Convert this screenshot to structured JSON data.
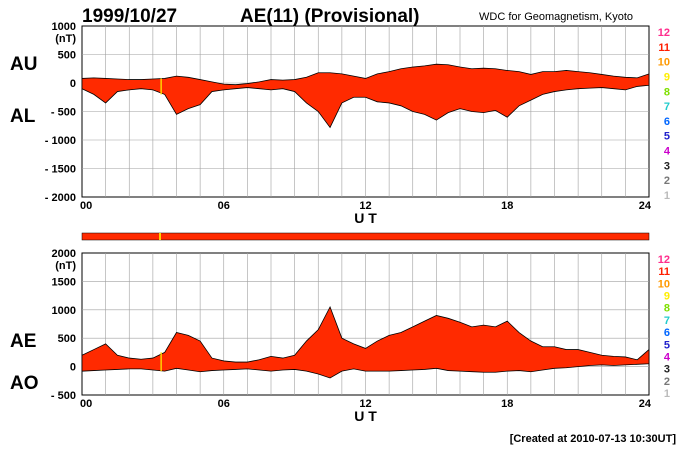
{
  "header": {
    "date": "1999/10/27",
    "title": "AE(11) (Provisional)",
    "source": "WDC for Geomagnetism, Kyoto"
  },
  "footer": {
    "created": "[Created at 2010-07-13 10:30UT]"
  },
  "colors": {
    "fill": "#ff2a00",
    "outline": "#000000",
    "grid": "#a0a0a0",
    "marker": "#ffd200"
  },
  "legend": [
    {
      "label": "12",
      "color": "#ff2c8c"
    },
    {
      "label": "11",
      "color": "#ff1e00"
    },
    {
      "label": "10",
      "color": "#ff9900"
    },
    {
      "label": "9",
      "color": "#ffee00"
    },
    {
      "label": "8",
      "color": "#7fe000"
    },
    {
      "label": "7",
      "color": "#22cccc"
    },
    {
      "label": "6",
      "color": "#0066ff"
    },
    {
      "label": "5",
      "color": "#2222cc"
    },
    {
      "label": "4",
      "color": "#cc00cc"
    },
    {
      "label": "3",
      "color": "#222222"
    },
    {
      "label": "2",
      "color": "#777777"
    },
    {
      "label": "1",
      "color": "#bbbbbb"
    }
  ],
  "chart_data": [
    {
      "type": "area",
      "name": "AU/AL",
      "series_labels": {
        "upper": "AU",
        "lower": "AL"
      },
      "xlabel": "U T",
      "xlim": [
        0,
        24
      ],
      "ylim": [
        -2000,
        1000
      ],
      "xticks": [
        "00",
        "06",
        "12",
        "18",
        "24"
      ],
      "xtick_values": [
        0,
        6,
        12,
        18,
        24
      ],
      "yticks": [
        1000,
        500,
        0,
        -500,
        -1000,
        -1500,
        -2000
      ],
      "ytick_labels": [
        "1000",
        "500",
        "0",
        "- 500",
        "- 1000",
        "- 1500",
        "- 2000"
      ],
      "yunit": "(nT)",
      "x": [
        0,
        0.5,
        1,
        1.5,
        2,
        2.5,
        3,
        3.5,
        4,
        4.5,
        5,
        5.5,
        6,
        6.5,
        7,
        7.5,
        8,
        8.5,
        9,
        9.5,
        10,
        10.5,
        11,
        11.5,
        12,
        12.5,
        13,
        13.5,
        14,
        14.5,
        15,
        15.5,
        16,
        16.5,
        17,
        17.5,
        18,
        18.5,
        19,
        19.5,
        20,
        20.5,
        21,
        21.5,
        22,
        22.5,
        23,
        23.5,
        24
      ],
      "upper": [
        80,
        90,
        80,
        70,
        60,
        60,
        70,
        80,
        120,
        100,
        60,
        20,
        -20,
        -30,
        -10,
        20,
        60,
        50,
        60,
        100,
        180,
        180,
        160,
        120,
        80,
        160,
        200,
        250,
        280,
        300,
        330,
        320,
        280,
        250,
        260,
        250,
        220,
        200,
        150,
        200,
        200,
        220,
        200,
        180,
        150,
        120,
        100,
        90,
        160
      ],
      "lower": [
        -100,
        -200,
        -350,
        -150,
        -120,
        -100,
        -120,
        -200,
        -550,
        -450,
        -380,
        -150,
        -120,
        -100,
        -80,
        -100,
        -120,
        -100,
        -150,
        -350,
        -500,
        -780,
        -350,
        -250,
        -250,
        -330,
        -350,
        -400,
        -500,
        -550,
        -650,
        -520,
        -450,
        -500,
        -520,
        -480,
        -600,
        -400,
        -300,
        -200,
        -150,
        -120,
        -100,
        -90,
        -80,
        -100,
        -120,
        -60,
        -40
      ]
    },
    {
      "type": "area",
      "name": "AE/AO",
      "series_labels": {
        "upper": "AE",
        "lower": "AO"
      },
      "xlabel": "U T",
      "xlim": [
        0,
        24
      ],
      "ylim": [
        -500,
        2000
      ],
      "xticks": [
        "00",
        "06",
        "12",
        "18",
        "24"
      ],
      "xtick_values": [
        0,
        6,
        12,
        18,
        24
      ],
      "yticks": [
        2000,
        1500,
        1000,
        500,
        0,
        -500
      ],
      "ytick_labels": [
        "2000",
        "1500",
        "1000",
        "500",
        "0",
        "- 500"
      ],
      "yunit": "(nT)",
      "x": [
        0,
        0.5,
        1,
        1.5,
        2,
        2.5,
        3,
        3.5,
        4,
        4.5,
        5,
        5.5,
        6,
        6.5,
        7,
        7.5,
        8,
        8.5,
        9,
        9.5,
        10,
        10.5,
        11,
        11.5,
        12,
        12.5,
        13,
        13.5,
        14,
        14.5,
        15,
        15.5,
        16,
        16.5,
        17,
        17.5,
        18,
        18.5,
        19,
        19.5,
        20,
        20.5,
        21,
        21.5,
        22,
        22.5,
        23,
        23.5,
        24
      ],
      "upper": [
        200,
        300,
        400,
        200,
        150,
        130,
        150,
        250,
        600,
        550,
        450,
        150,
        100,
        80,
        80,
        120,
        180,
        150,
        200,
        450,
        650,
        1050,
        500,
        400,
        320,
        450,
        550,
        600,
        700,
        800,
        900,
        850,
        780,
        700,
        730,
        700,
        800,
        600,
        450,
        350,
        350,
        300,
        300,
        250,
        200,
        180,
        170,
        120,
        300
      ],
      "lower": [
        -80,
        -70,
        -60,
        -50,
        -40,
        -40,
        -60,
        -80,
        -30,
        -60,
        -90,
        -70,
        -60,
        -50,
        -40,
        -60,
        -80,
        -60,
        -50,
        -80,
        -130,
        -200,
        -80,
        -40,
        -80,
        -80,
        -80,
        -70,
        -60,
        -50,
        -30,
        -70,
        -80,
        -90,
        -100,
        -100,
        -80,
        -70,
        -90,
        -60,
        -30,
        -20,
        0,
        20,
        30,
        20,
        30,
        40,
        50
      ]
    }
  ]
}
